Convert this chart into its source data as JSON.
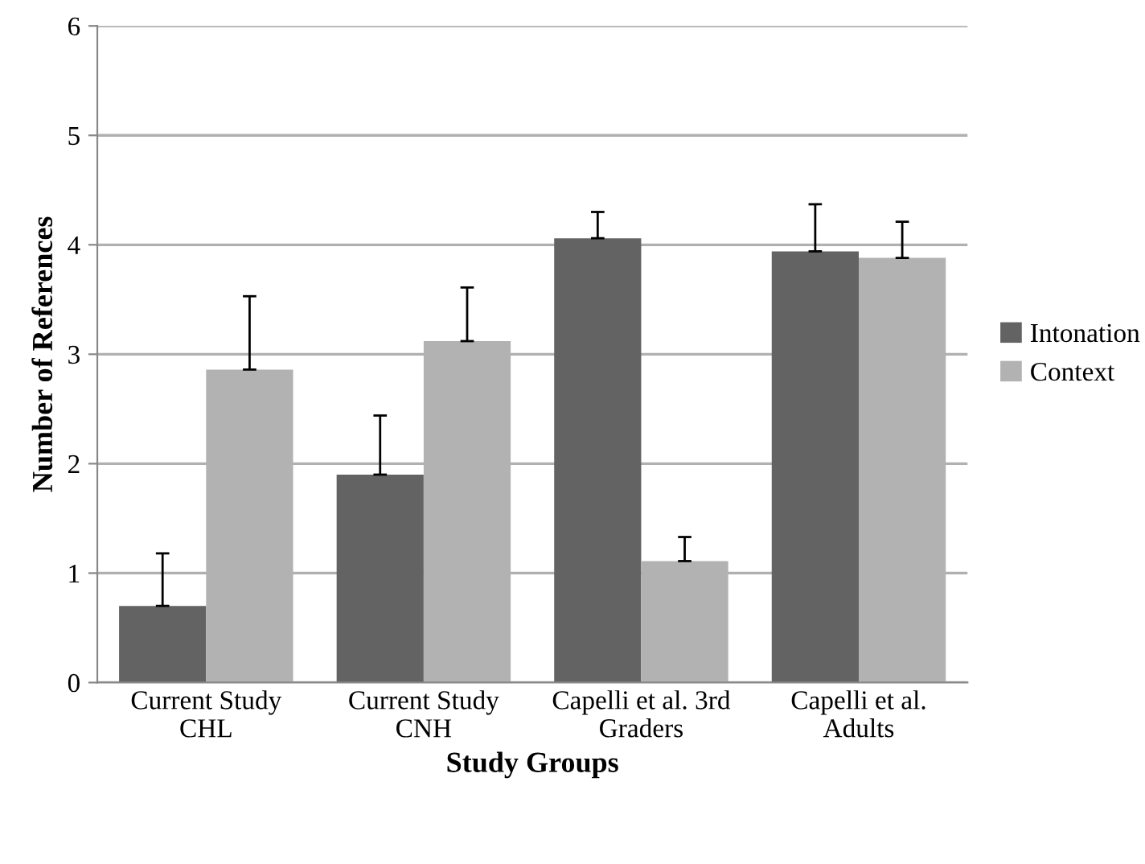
{
  "chart_data": {
    "type": "bar",
    "xlabel": "Study Groups",
    "ylabel": "Number of References",
    "categories": [
      "Current Study\nCHL",
      "Current Study\nCNH",
      "Capelli et al. 3rd\nGraders",
      "Capelli et al.\nAdults"
    ],
    "series": [
      {
        "name": "Intonation",
        "color": "#636363",
        "values": [
          0.7,
          1.9,
          4.06,
          3.94
        ],
        "errors": [
          [
            0.7,
            1.18
          ],
          [
            1.9,
            2.44
          ],
          [
            4.06,
            4.3
          ],
          [
            3.94,
            4.37
          ]
        ]
      },
      {
        "name": "Context",
        "color": "#b2b2b2",
        "values": [
          2.86,
          3.12,
          1.11,
          3.88
        ],
        "errors": [
          [
            2.86,
            3.53
          ],
          [
            3.12,
            3.61
          ],
          [
            1.11,
            1.33
          ],
          [
            3.88,
            4.21
          ]
        ]
      }
    ],
    "ylim": [
      0,
      6
    ],
    "yticks": [
      0,
      1,
      2,
      3,
      4,
      5,
      6
    ],
    "grid": "y",
    "legend": "right"
  }
}
